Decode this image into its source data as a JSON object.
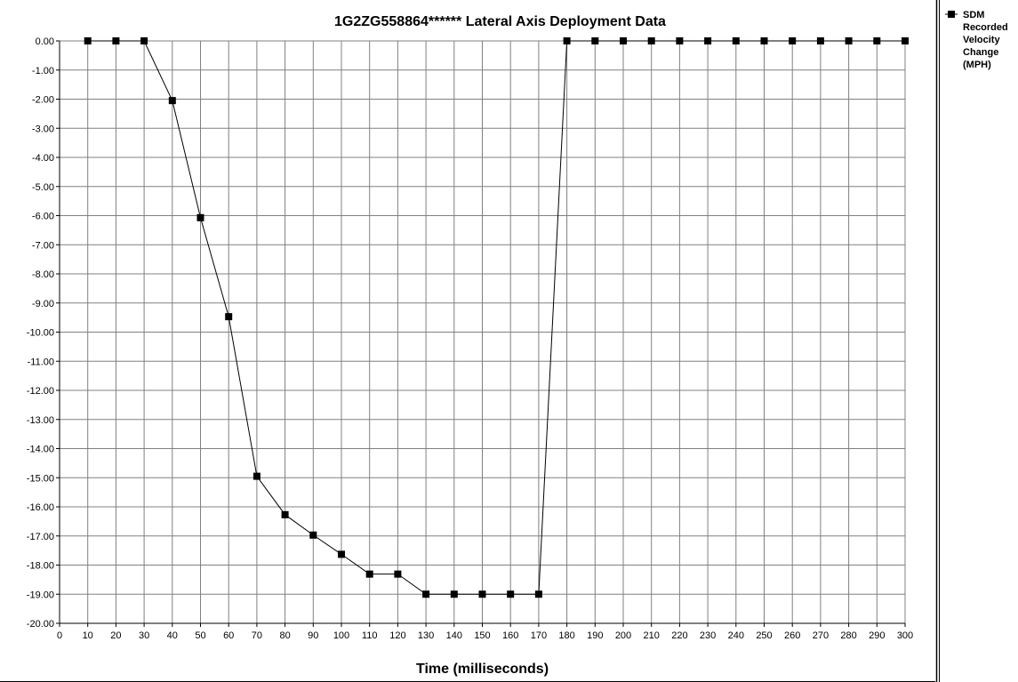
{
  "chart_data": {
    "type": "line",
    "title": "1G2ZG558864******  Lateral Axis Deployment Data",
    "xlabel": "Time (milliseconds)",
    "ylabel": "",
    "xlim": [
      0,
      300
    ],
    "ylim": [
      -20,
      0
    ],
    "x_ticks": [
      "0",
      "10",
      "20",
      "30",
      "40",
      "50",
      "60",
      "70",
      "80",
      "90",
      "100",
      "110",
      "120",
      "130",
      "140",
      "150",
      "160",
      "170",
      "180",
      "190",
      "200",
      "210",
      "220",
      "230",
      "240",
      "250",
      "260",
      "270",
      "280",
      "290",
      "300"
    ],
    "y_ticks": [
      "0.00",
      "-1.00",
      "-2.00",
      "-3.00",
      "-4.00",
      "-5.00",
      "-6.00",
      "-7.00",
      "-8.00",
      "-9.00",
      "-10.00",
      "-11.00",
      "-12.00",
      "-13.00",
      "-14.00",
      "-15.00",
      "-16.00",
      "-17.00",
      "-18.00",
      "-19.00",
      "-20.00"
    ],
    "grid": true,
    "legend_position": "right",
    "legend_label_lines": [
      "SDM",
      "Recorded",
      "Velocity",
      "Change",
      "(MPH)"
    ],
    "series": [
      {
        "name": "SDM Recorded Velocity Change (MPH)",
        "color": "#000000",
        "marker": "square",
        "x": [
          10,
          20,
          30,
          40,
          50,
          60,
          70,
          80,
          90,
          100,
          110,
          120,
          130,
          140,
          150,
          160,
          170,
          180,
          190,
          200,
          210,
          220,
          230,
          240,
          250,
          260,
          270,
          280,
          290,
          300
        ],
        "y": [
          0,
          0,
          0,
          -2.05,
          -6.07,
          -9.47,
          -14.95,
          -16.27,
          -16.97,
          -17.63,
          -18.31,
          -18.31,
          -19.0,
          -19.0,
          -19.0,
          -19.0,
          -19.0,
          0,
          0,
          0,
          0,
          0,
          0,
          0,
          0,
          0,
          0,
          0,
          0,
          0
        ]
      }
    ]
  }
}
